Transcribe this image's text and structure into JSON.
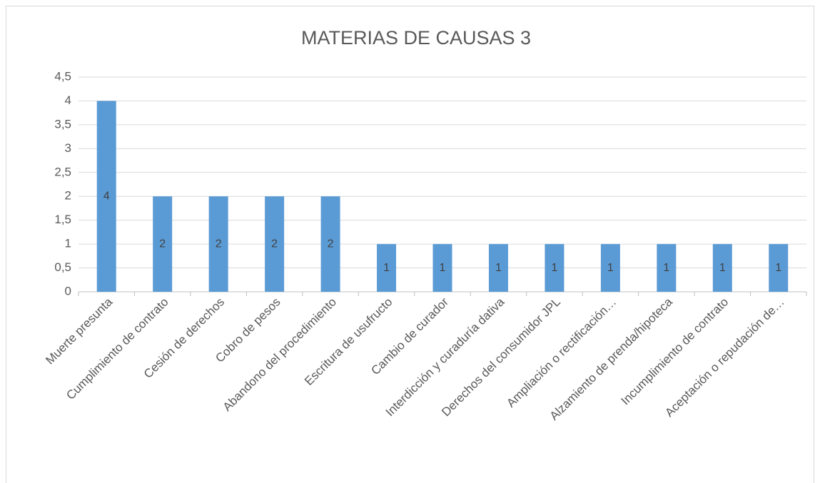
{
  "chart_data": {
    "type": "bar",
    "title": "MATERIAS DE CAUSAS 3",
    "categories": [
      "Muerte presunta",
      "Cumplimiento de contrato",
      "Cesión de derechos",
      "Cobro de pesos",
      "Abandono del procedimiento",
      "Escritura de usufructo",
      "Cambio de curador",
      "Interdicción y curaduría dativa",
      "Derechos del consumidor JPL",
      "Ampliación o rectificación…",
      "Alzamiento de prenda/hipoteca",
      "Incumplimiento de contrato",
      "Aceptación o repudación de…"
    ],
    "values": [
      4,
      2,
      2,
      2,
      2,
      1,
      1,
      1,
      1,
      1,
      1,
      1,
      1
    ],
    "color": "#5b9bd5",
    "ylim": [
      0,
      4.5
    ],
    "yticks": [
      0,
      {
        "value": 0.5,
        "label": "0,5"
      },
      1,
      {
        "value": 1.5,
        "label": "1,5"
      },
      2,
      {
        "value": 2.5,
        "label": "2,5"
      },
      3,
      {
        "value": 3.5,
        "label": "3,5"
      },
      4,
      {
        "value": 4.5,
        "label": "4,5"
      }
    ],
    "grid": true
  }
}
